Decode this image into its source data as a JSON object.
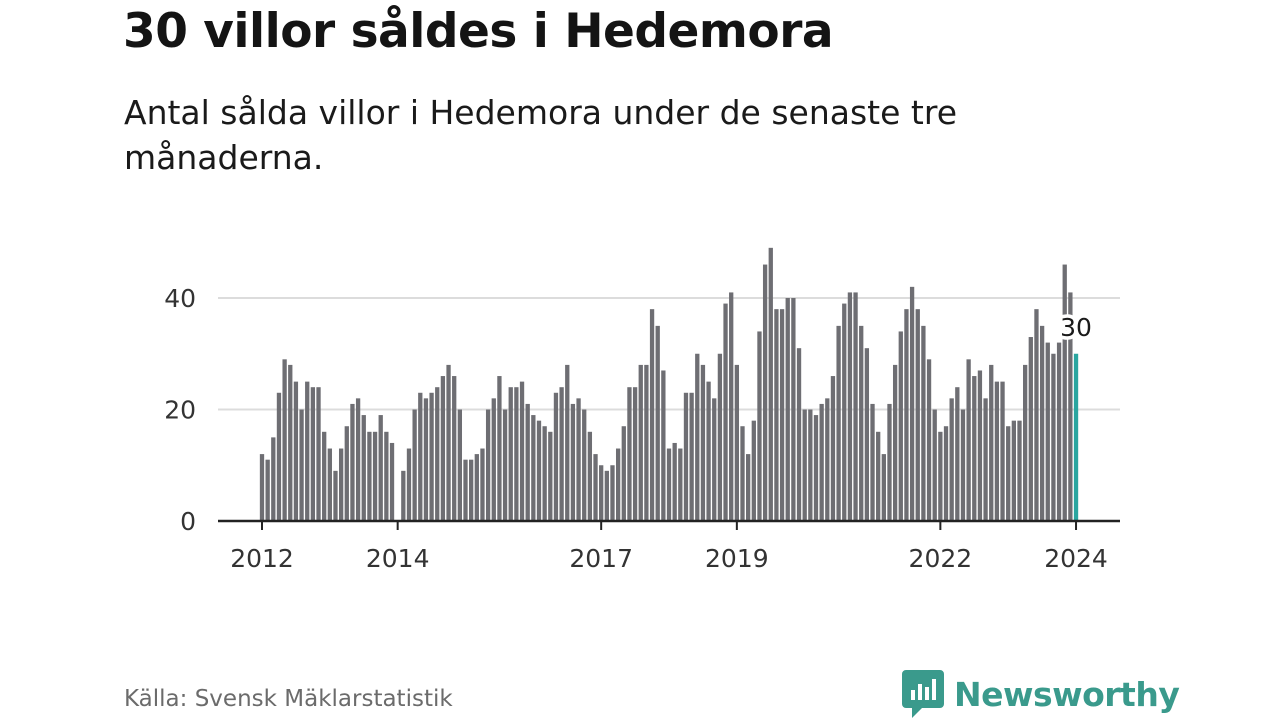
{
  "title": "30 villor såldes i Hedemora",
  "subtitle": "Antal sålda villor i Hedemora under de senaste tre månaderna.",
  "source": "Källa: Svensk Mäklarstatistik",
  "brand": "Newsworthy",
  "colors": {
    "bar": "#6e6e73",
    "highlight": "#2aa6a0",
    "grid": "#dcdcdc",
    "axis": "#222222",
    "brand": "#3a9a8c"
  },
  "chart_data": {
    "type": "bar",
    "title": "30 villor såldes i Hedemora",
    "xlabel": "",
    "ylabel": "",
    "ylim": [
      0,
      50
    ],
    "yticks": [
      0,
      20,
      40
    ],
    "xticks": [
      {
        "label": "2012",
        "index": 0
      },
      {
        "label": "2014",
        "index": 24
      },
      {
        "label": "2017",
        "index": 60
      },
      {
        "label": "2019",
        "index": 84
      },
      {
        "label": "2022",
        "index": 120
      },
      {
        "label": "2024",
        "index": 144
      }
    ],
    "categories_note": "monthly, 2012-01 to 2024-01",
    "values": [
      12,
      11,
      15,
      23,
      29,
      28,
      25,
      20,
      25,
      24,
      24,
      16,
      13,
      9,
      13,
      17,
      21,
      22,
      19,
      16,
      16,
      19,
      16,
      14,
      0,
      9,
      13,
      20,
      23,
      22,
      23,
      24,
      26,
      28,
      26,
      20,
      11,
      11,
      12,
      13,
      20,
      22,
      26,
      20,
      24,
      24,
      25,
      21,
      19,
      18,
      17,
      16,
      23,
      24,
      28,
      21,
      22,
      20,
      16,
      12,
      10,
      9,
      10,
      13,
      17,
      24,
      24,
      28,
      28,
      38,
      35,
      27,
      13,
      14,
      13,
      23,
      23,
      30,
      28,
      25,
      22,
      30,
      39,
      41,
      28,
      17,
      12,
      18,
      34,
      46,
      49,
      38,
      38,
      40,
      40,
      31,
      20,
      20,
      19,
      21,
      22,
      26,
      35,
      39,
      41,
      41,
      35,
      31,
      21,
      16,
      12,
      21,
      28,
      34,
      38,
      42,
      38,
      35,
      29,
      20,
      16,
      17,
      22,
      24,
      20,
      29,
      26,
      27,
      22,
      28,
      25,
      25,
      17,
      18,
      18,
      28,
      33,
      38,
      35,
      32,
      30,
      32,
      46,
      41,
      30
    ],
    "highlight_index": 144,
    "annotation": "30"
  }
}
